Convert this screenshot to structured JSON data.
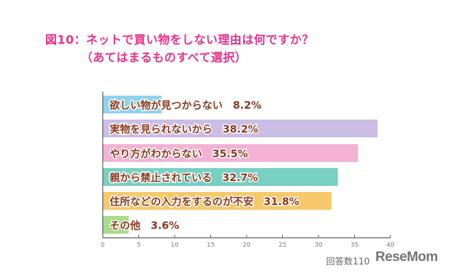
{
  "chart_data": {
    "type": "bar",
    "orientation": "horizontal",
    "title": "図10：ネットで買い物をしない理由は何ですか？",
    "subtitle": "（あてはまるものすべて選択）",
    "categories": [
      "欲しい物が見つからない",
      "実物を見られないから",
      "やり方がわからない",
      "親から禁止されている",
      "住所などの入力をするのが不安",
      "その他"
    ],
    "values": [
      8.2,
      38.2,
      35.5,
      32.7,
      31.8,
      3.6
    ],
    "data_labels": [
      "8.2%",
      "38.2%",
      "35.5%",
      "32.7%",
      "31.8%",
      "3.6%"
    ],
    "colors": [
      "#8fd3ee",
      "#cbbde6",
      "#f3b2d4",
      "#77d0c2",
      "#f7c96a",
      "#a8dc8a"
    ],
    "label_color": "#8a3a1e",
    "xlim": [
      0,
      40
    ],
    "xticks": [
      0,
      5,
      10,
      15,
      20,
      25,
      30,
      35,
      40
    ],
    "grid": false,
    "xlabel": "",
    "ylabel": ""
  },
  "footer": {
    "respondents": "回答数110",
    "logo": "ReseMom"
  }
}
